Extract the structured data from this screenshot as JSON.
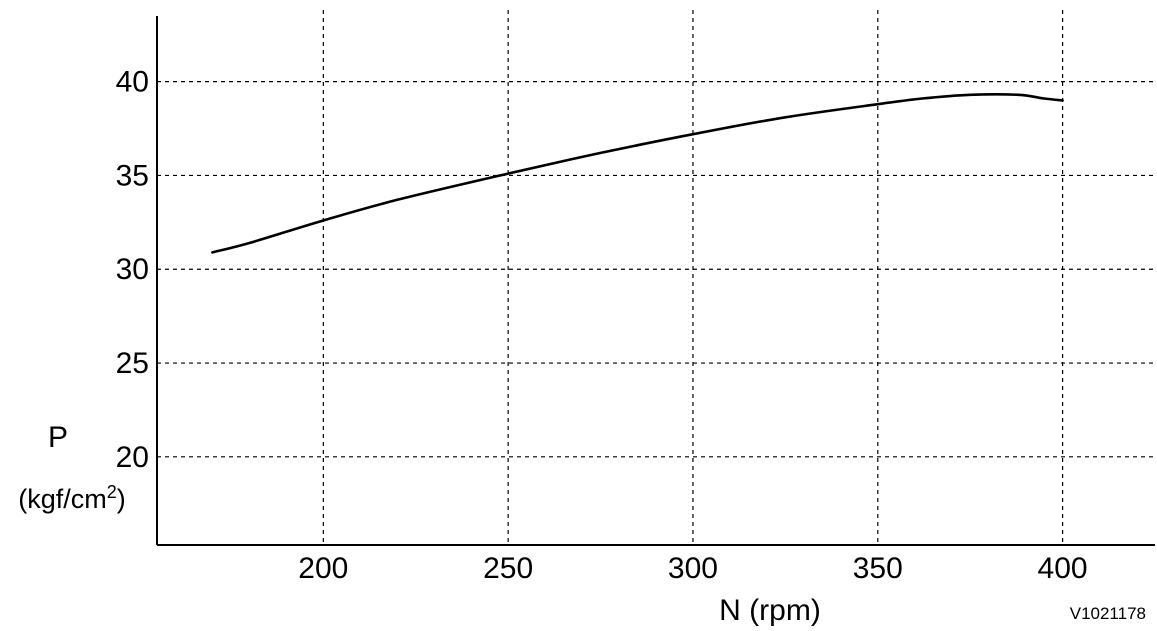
{
  "chart_data": {
    "type": "line",
    "xlabel": "N (rpm)",
    "ylabel": "P",
    "ylabel_unit_base": "(kgf/cm",
    "ylabel_unit_sup": "2",
    "ylabel_unit_close": ")",
    "xlim": [
      155,
      425
    ],
    "ylim": [
      15.3,
      43.5
    ],
    "x_ticks": [
      200,
      250,
      300,
      350,
      400
    ],
    "y_ticks": [
      20,
      25,
      30,
      35,
      40
    ],
    "x_tick_labels": [
      "200",
      "250",
      "300",
      "350",
      "400"
    ],
    "y_tick_labels": [
      "20",
      "25",
      "30",
      "35",
      "40"
    ],
    "grid": true,
    "series": [
      {
        "x": [
          170,
          180,
          200,
          220,
          250,
          275,
          300,
          325,
          350,
          362,
          375,
          388,
          395,
          400
        ],
        "values": [
          30.9,
          31.4,
          32.6,
          33.7,
          35.1,
          36.2,
          37.2,
          38.1,
          38.8,
          39.1,
          39.3,
          39.3,
          39.1,
          39.0
        ]
      }
    ]
  },
  "figure_code": "V1021178"
}
